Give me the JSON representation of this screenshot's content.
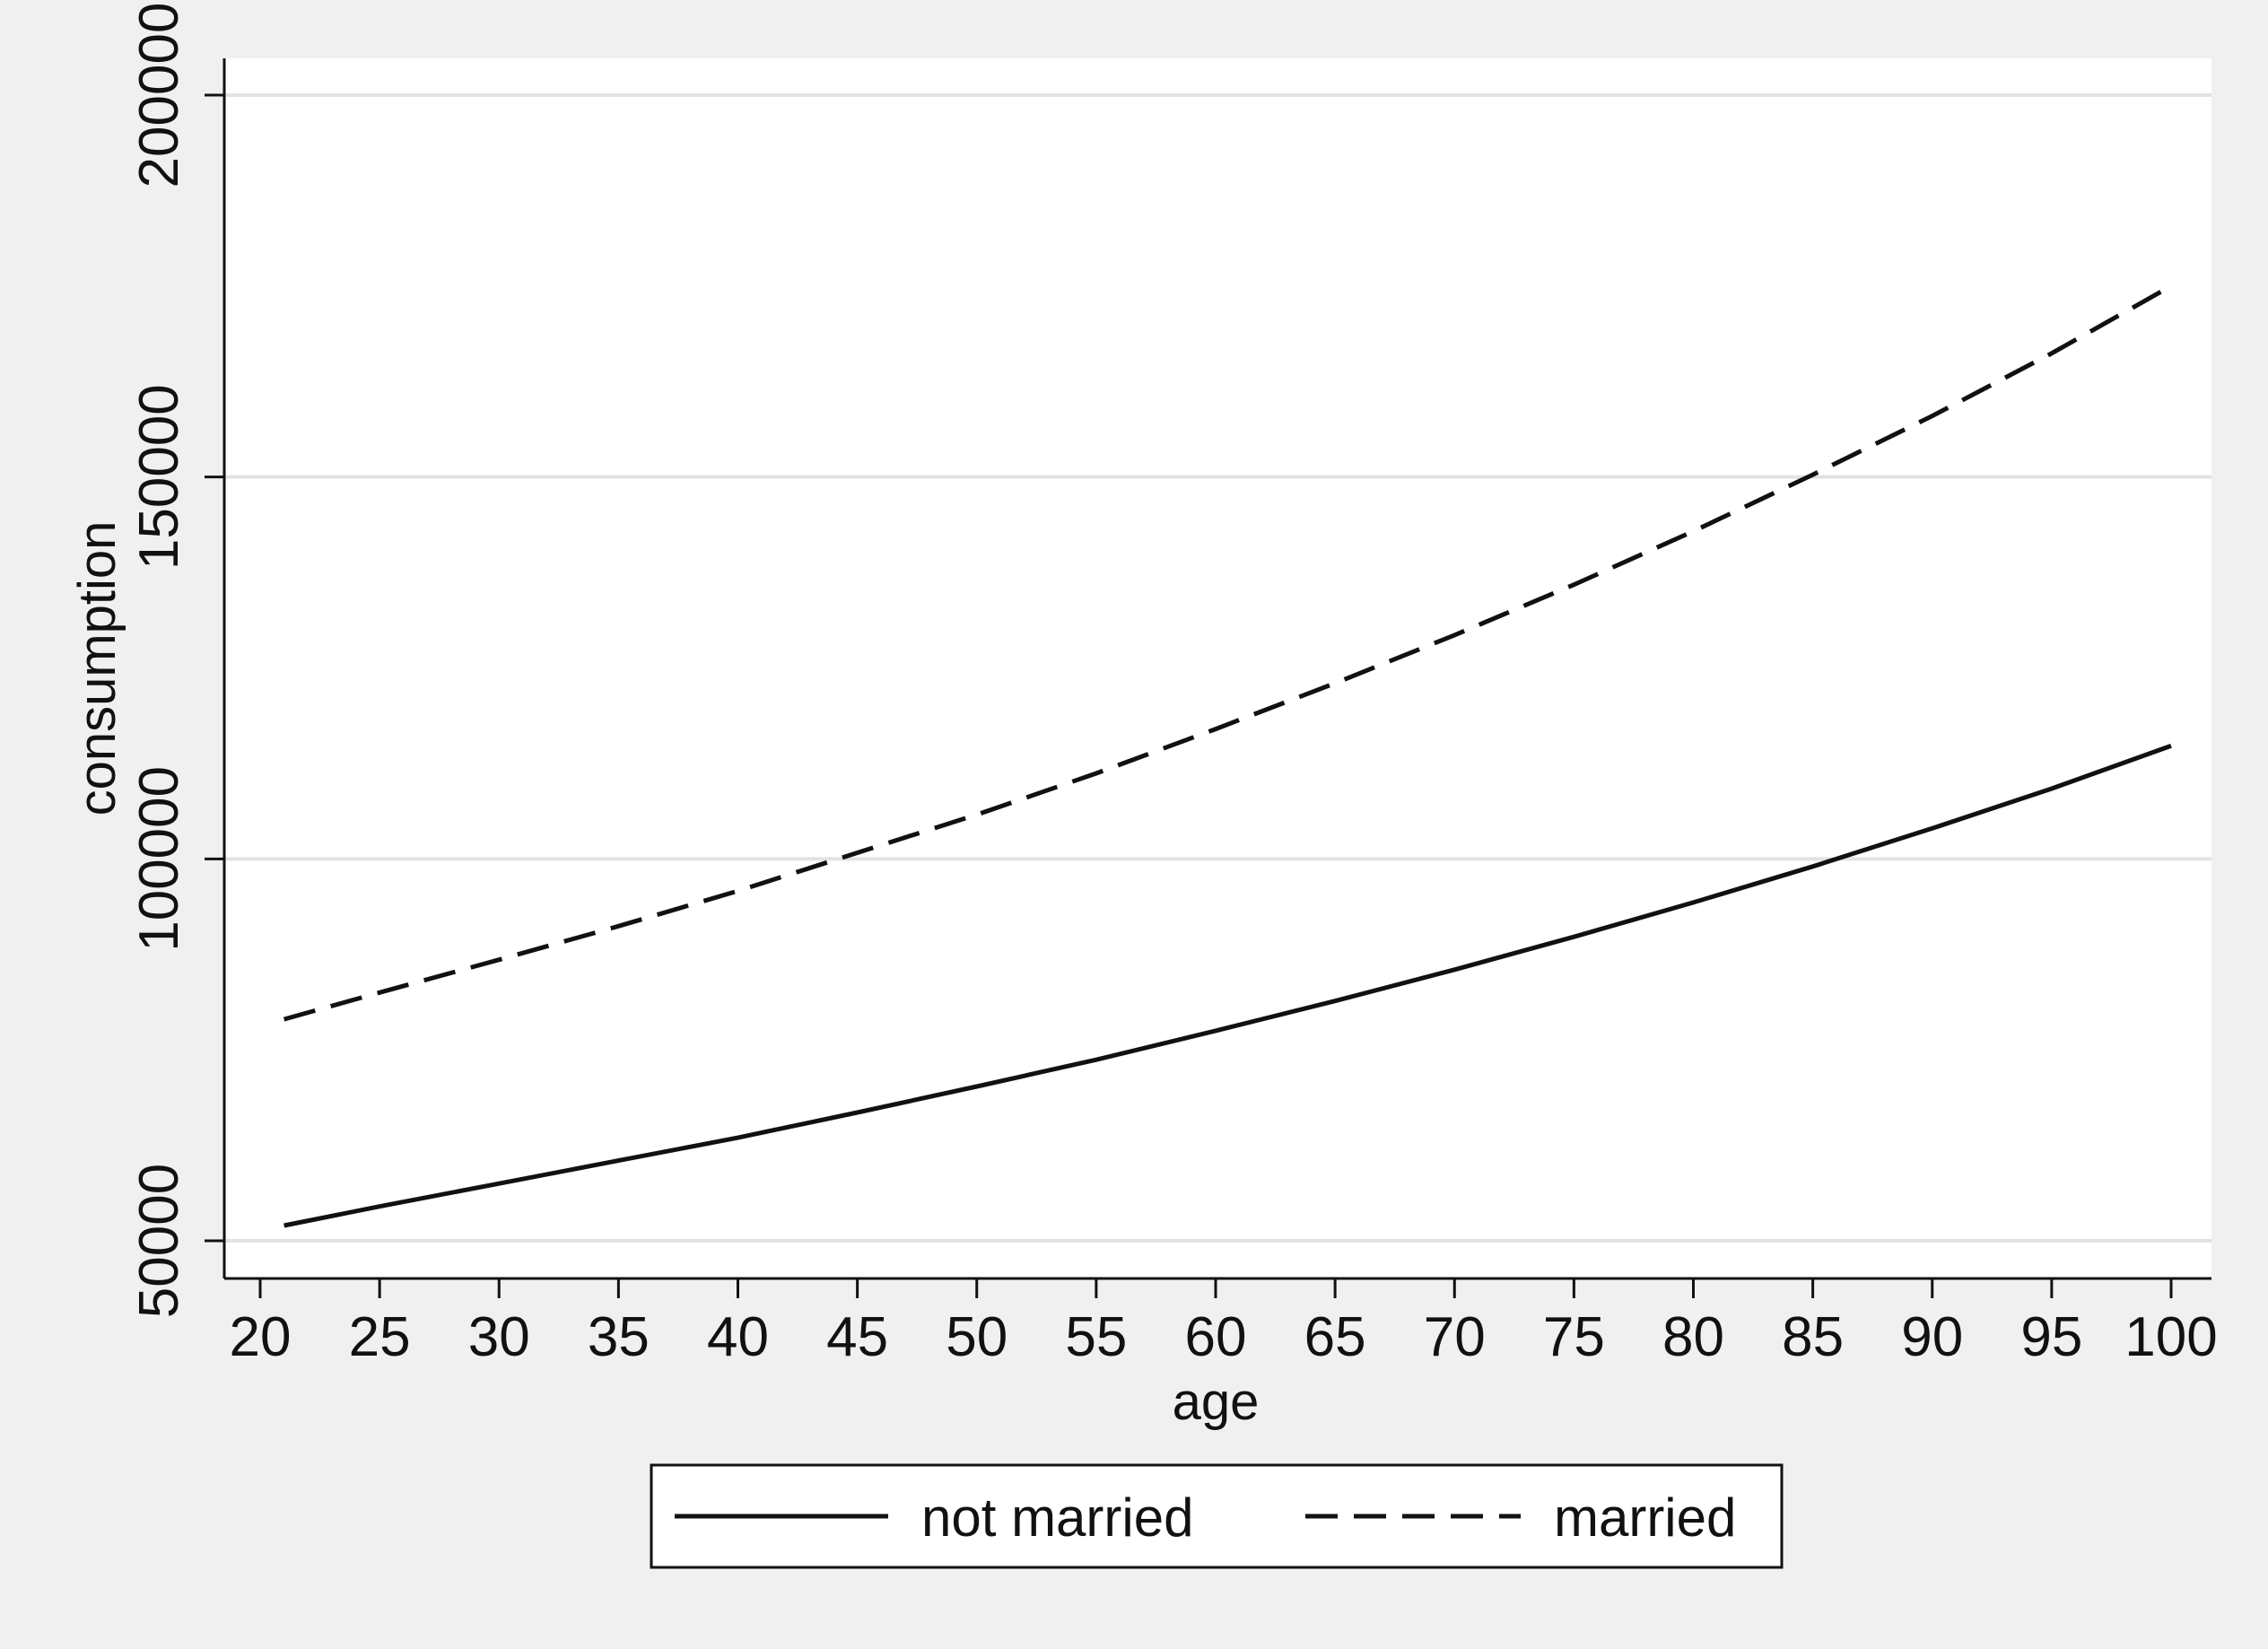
{
  "chart_data": {
    "type": "line",
    "title": "",
    "xlabel": "age",
    "ylabel": "consumption",
    "xlim": [
      21,
      100
    ],
    "ylim": [
      50000,
      200000
    ],
    "xticks": [
      20,
      25,
      30,
      35,
      40,
      45,
      50,
      55,
      60,
      65,
      70,
      75,
      80,
      85,
      90,
      95,
      100
    ],
    "yticks": [
      50000,
      100000,
      150000,
      200000
    ],
    "grid": "horizontal",
    "legend_position": "bottom",
    "x": [
      21,
      25,
      30,
      35,
      40,
      45,
      50,
      55,
      60,
      65,
      70,
      75,
      80,
      85,
      90,
      95,
      100
    ],
    "series": [
      {
        "name": "not married",
        "style": "solid",
        "values": [
          52000,
          54500,
          57500,
          60500,
          63500,
          66800,
          70200,
          73700,
          77500,
          81400,
          85500,
          89800,
          94300,
          99000,
          104000,
          109200,
          114800
        ]
      },
      {
        "name": "married",
        "style": "dashed",
        "values": [
          79000,
          82500,
          86800,
          91200,
          95800,
          100800,
          105800,
          111200,
          117000,
          123000,
          129300,
          135900,
          142900,
          150300,
          158000,
          166200,
          175000
        ]
      }
    ],
    "colors": {
      "line": "#111111",
      "grid": "#e2e2e2",
      "plot_bg": "#ffffff",
      "page_bg": "#f0f0f0"
    }
  }
}
